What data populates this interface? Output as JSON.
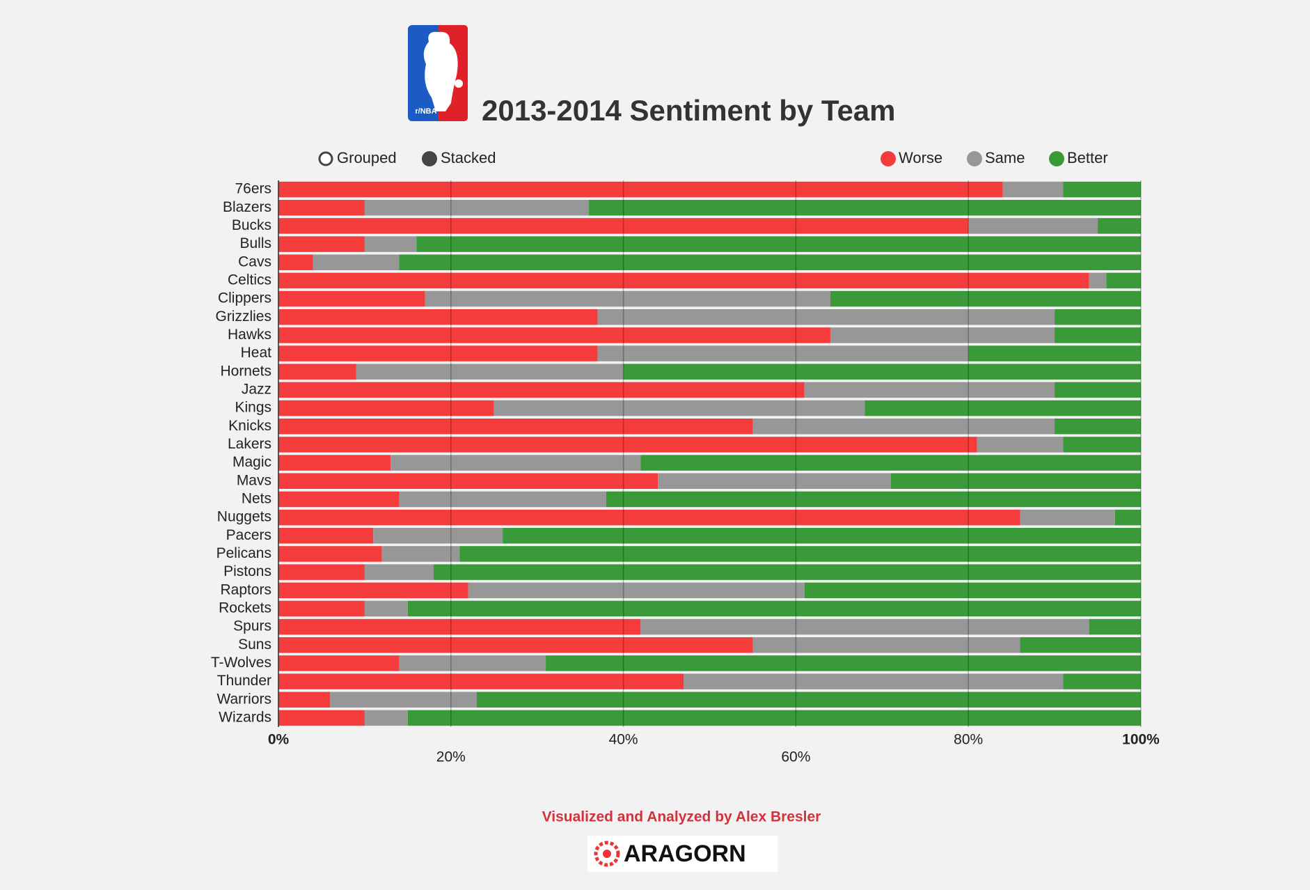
{
  "chart_data": {
    "type": "stacked_bar_horizontal",
    "title": "2013-2014 Sentiment by Team",
    "categories": [
      "76ers",
      "Blazers",
      "Bucks",
      "Bulls",
      "Cavs",
      "Celtics",
      "Clippers",
      "Grizzlies",
      "Hawks",
      "Heat",
      "Hornets",
      "Jazz",
      "Kings",
      "Knicks",
      "Lakers",
      "Magic",
      "Mavs",
      "Nets",
      "Nuggets",
      "Pacers",
      "Pelicans",
      "Pistons",
      "Raptors",
      "Rockets",
      "Spurs",
      "Suns",
      "T-Wolves",
      "Thunder",
      "Warriors",
      "Wizards"
    ],
    "series": [
      {
        "name": "Worse",
        "color": "#f43c3c",
        "values": [
          84,
          10,
          80,
          10,
          4,
          94,
          17,
          37,
          64,
          37,
          9,
          61,
          25,
          55,
          81,
          13,
          44,
          14,
          86,
          11,
          12,
          10,
          22,
          10,
          42,
          55,
          14,
          47,
          6,
          10
        ]
      },
      {
        "name": "Same",
        "color": "#979797",
        "values": [
          7,
          26,
          15,
          6,
          10,
          2,
          47,
          53,
          26,
          43,
          31,
          29,
          43,
          35,
          10,
          29,
          27,
          24,
          11,
          15,
          9,
          8,
          39,
          5,
          52,
          31,
          17,
          44,
          17,
          5
        ]
      },
      {
        "name": "Better",
        "color": "#3a9a3a",
        "values": [
          9,
          64,
          5,
          84,
          86,
          4,
          36,
          10,
          10,
          20,
          60,
          10,
          32,
          10,
          9,
          58,
          29,
          62,
          3,
          74,
          79,
          82,
          39,
          85,
          6,
          14,
          69,
          9,
          77,
          85
        ]
      }
    ],
    "xlim": [
      0,
      100
    ],
    "xticks": [
      {
        "value": 0,
        "label": "0%"
      },
      {
        "value": 20,
        "label": "20%"
      },
      {
        "value": 40,
        "label": "40%"
      },
      {
        "value": 60,
        "label": "60%"
      },
      {
        "value": 80,
        "label": "80%"
      },
      {
        "value": 100,
        "label": "100%"
      }
    ],
    "grid": true,
    "legend_position": "top-right",
    "controls": [
      "Grouped",
      "Stacked"
    ],
    "logo_label": "r/NBA",
    "credit": "Visualized and Analyzed by Alex Bresler",
    "brand": "ARAGORN"
  }
}
